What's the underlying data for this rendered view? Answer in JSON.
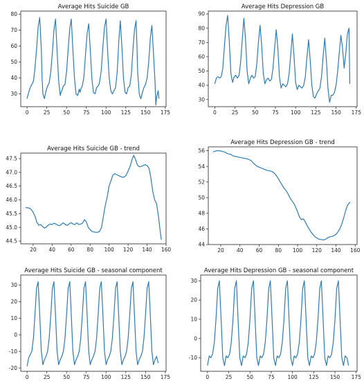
{
  "chart_data": [
    {
      "type": "line",
      "title": "Average Hits Suicide GB",
      "xlim": [
        -8,
        176
      ],
      "ylim": [
        22,
        82
      ],
      "xticks": [
        0,
        25,
        50,
        75,
        100,
        125,
        150,
        175
      ],
      "yticks": [
        30,
        40,
        50,
        60,
        70,
        80
      ],
      "series": [
        {
          "x": [
            0,
            2,
            4,
            6,
            8,
            10,
            12,
            14,
            16,
            18,
            19,
            20,
            22,
            24,
            26,
            28,
            30,
            32,
            34,
            36,
            38,
            40,
            42,
            43,
            44,
            46,
            48,
            50,
            52,
            54,
            56,
            58,
            60,
            62,
            64,
            66,
            67,
            68,
            70,
            72,
            74,
            76,
            78,
            80,
            82,
            84,
            86,
            88,
            90,
            91,
            92,
            94,
            96,
            98,
            100,
            102,
            104,
            106,
            108,
            110,
            112,
            114,
            115,
            116,
            118,
            120,
            122,
            124,
            126,
            128,
            130,
            132,
            134,
            136,
            138,
            139,
            140,
            142,
            144,
            146,
            148,
            150,
            152,
            154,
            156,
            158,
            160,
            162,
            163,
            164,
            166,
            167
          ],
          "y": [
            27,
            31,
            34,
            36,
            38,
            46,
            58,
            72,
            78,
            58,
            40,
            30,
            27,
            32,
            35,
            37,
            44,
            56,
            70,
            77,
            57,
            38,
            29,
            31,
            32,
            35,
            36,
            44,
            58,
            71,
            77,
            58,
            40,
            30,
            29,
            33,
            31,
            33,
            35,
            41,
            55,
            68,
            74,
            58,
            40,
            31,
            30,
            34,
            35,
            36,
            38,
            45,
            60,
            72,
            77,
            57,
            40,
            32,
            30,
            32,
            34,
            43,
            52,
            62,
            76,
            60,
            40,
            31,
            30,
            34,
            35,
            42,
            58,
            70,
            76,
            62,
            44,
            30,
            27,
            31,
            34,
            36,
            40,
            50,
            65,
            73,
            56,
            38,
            23,
            28,
            32,
            27
          ]
        }
      ]
    },
    {
      "type": "line",
      "title": "Average Hits Depression GB",
      "xlim": [
        -8,
        176
      ],
      "ylim": [
        25,
        92
      ],
      "xticks": [
        0,
        25,
        50,
        75,
        100,
        125,
        150,
        175
      ],
      "yticks": [
        30,
        40,
        50,
        60,
        70,
        80,
        90
      ],
      "series": [
        {
          "x": [
            0,
            2,
            4,
            6,
            8,
            10,
            12,
            14,
            16,
            18,
            20,
            22,
            24,
            26,
            28,
            30,
            32,
            34,
            36,
            38,
            40,
            42,
            44,
            46,
            48,
            50,
            52,
            54,
            56,
            58,
            60,
            62,
            64,
            66,
            68,
            70,
            72,
            74,
            76,
            78,
            80,
            82,
            84,
            86,
            88,
            90,
            92,
            94,
            96,
            98,
            100,
            102,
            104,
            106,
            108,
            110,
            112,
            114,
            116,
            118,
            120,
            122,
            124,
            126,
            128,
            130,
            132,
            134,
            136,
            138,
            140,
            142,
            144,
            146,
            148,
            150,
            152,
            154,
            156,
            158,
            160,
            162,
            164,
            166,
            167
          ],
          "y": [
            41,
            45,
            46,
            45,
            46,
            52,
            68,
            82,
            89,
            70,
            48,
            42,
            46,
            47,
            45,
            47,
            56,
            72,
            87,
            72,
            50,
            41,
            45,
            47,
            45,
            46,
            55,
            70,
            82,
            68,
            48,
            41,
            44,
            45,
            43,
            44,
            52,
            66,
            79,
            66,
            46,
            38,
            41,
            40,
            39,
            41,
            48,
            62,
            76,
            60,
            42,
            37,
            40,
            39,
            38,
            40,
            46,
            60,
            72,
            58,
            40,
            32,
            31,
            34,
            36,
            38,
            46,
            60,
            73,
            58,
            38,
            28,
            33,
            33,
            35,
            40,
            50,
            63,
            75,
            66,
            52,
            62,
            76,
            80,
            41
          ]
        }
      ]
    },
    {
      "type": "line",
      "title": "Average Hits Suicide GB - trend",
      "xlim": [
        7,
        160
      ],
      "ylim": [
        44.4,
        47.7
      ],
      "xticks": [
        20,
        40,
        60,
        80,
        100,
        120,
        140,
        160
      ],
      "yticks": [
        44.5,
        45.0,
        45.5,
        46.0,
        46.5,
        47.0,
        47.5
      ],
      "series": [
        {
          "x": [
            12,
            16,
            18,
            20,
            22,
            24,
            26,
            28,
            30,
            32,
            34,
            36,
            38,
            40,
            42,
            44,
            46,
            48,
            50,
            52,
            54,
            56,
            58,
            60,
            62,
            64,
            66,
            68,
            70,
            72,
            74,
            76,
            78,
            80,
            82,
            84,
            86,
            88,
            90,
            92,
            94,
            96,
            98,
            100,
            102,
            104,
            106,
            108,
            110,
            112,
            114,
            116,
            118,
            120,
            122,
            124,
            126,
            128,
            130,
            132,
            134,
            136,
            138,
            140,
            142,
            144,
            146,
            148,
            150,
            152,
            154,
            155
          ],
          "y": [
            45.72,
            45.7,
            45.65,
            45.55,
            45.4,
            45.18,
            45.08,
            45.1,
            45.03,
            44.97,
            45.02,
            45.08,
            45.12,
            45.1,
            45.15,
            45.12,
            45.08,
            45.06,
            45.12,
            45.16,
            45.1,
            45.07,
            45.13,
            45.17,
            45.12,
            45.1,
            45.16,
            45.1,
            45.12,
            45.15,
            45.28,
            45.2,
            45.0,
            44.92,
            44.85,
            44.83,
            44.82,
            44.82,
            44.85,
            45.0,
            45.4,
            45.8,
            46.1,
            46.5,
            46.7,
            46.9,
            46.95,
            46.92,
            46.88,
            46.85,
            46.82,
            46.83,
            46.9,
            47.05,
            47.2,
            47.45,
            47.62,
            47.45,
            47.25,
            47.2,
            47.22,
            47.25,
            47.28,
            47.25,
            47.15,
            46.8,
            46.3,
            46.0,
            45.85,
            45.4,
            44.8,
            44.55
          ]
        }
      ]
    },
    {
      "type": "line",
      "title": "Average Hits Depression GB - trend",
      "xlim": [
        7,
        162
      ],
      "ylim": [
        44,
        56.5
      ],
      "xticks": [
        20,
        40,
        60,
        80,
        100,
        120,
        140,
        160
      ],
      "yticks": [
        44,
        46,
        48,
        50,
        52,
        54,
        56
      ],
      "series": [
        {
          "x": [
            12,
            14,
            16,
            18,
            20,
            22,
            24,
            26,
            28,
            30,
            32,
            34,
            36,
            38,
            40,
            42,
            44,
            46,
            48,
            50,
            52,
            54,
            56,
            58,
            60,
            62,
            64,
            66,
            68,
            70,
            72,
            74,
            76,
            78,
            80,
            82,
            84,
            86,
            88,
            90,
            92,
            94,
            96,
            98,
            100,
            102,
            104,
            106,
            108,
            110,
            112,
            114,
            116,
            118,
            120,
            122,
            124,
            126,
            128,
            130,
            132,
            134,
            136,
            138,
            140,
            142,
            144,
            146,
            148,
            150,
            152,
            154,
            155
          ],
          "y": [
            55.85,
            55.95,
            56.0,
            56.0,
            55.98,
            55.9,
            55.85,
            55.7,
            55.6,
            55.55,
            55.4,
            55.3,
            55.25,
            55.2,
            55.15,
            55.1,
            55.05,
            55.0,
            54.95,
            54.85,
            54.7,
            54.4,
            54.2,
            54.0,
            53.9,
            53.8,
            53.7,
            53.6,
            53.5,
            53.45,
            53.4,
            53.3,
            53.1,
            52.8,
            52.4,
            52.0,
            51.6,
            51.2,
            50.9,
            50.5,
            50.0,
            49.6,
            49.3,
            48.8,
            48.2,
            47.5,
            47.2,
            47.3,
            46.9,
            46.4,
            46.0,
            45.6,
            45.3,
            45.0,
            44.85,
            44.7,
            44.65,
            44.6,
            44.6,
            44.75,
            44.9,
            45.0,
            45.05,
            45.15,
            45.3,
            45.6,
            46.0,
            46.6,
            47.4,
            48.3,
            49.0,
            49.35,
            49.4
          ]
        }
      ]
    },
    {
      "type": "line",
      "title": "Average Hits Suicide GB - seasonal component",
      "xlim": [
        -8,
        176
      ],
      "ylim": [
        -22,
        36
      ],
      "xticks": [
        0,
        25,
        50,
        75,
        100,
        125,
        150,
        175
      ],
      "yticks": [
        -20,
        -10,
        0,
        10,
        20,
        30
      ],
      "series": [
        {
          "x": [
            0,
            2,
            4,
            6,
            8,
            10,
            12,
            14,
            16,
            18,
            20,
            22,
            24,
            26,
            28,
            30,
            32,
            34,
            36,
            38,
            40,
            42,
            44,
            46,
            48,
            50,
            52,
            54,
            56,
            58,
            60,
            62,
            64,
            66,
            68,
            70,
            72,
            74,
            76,
            78,
            80,
            82,
            84,
            86,
            88,
            90,
            92,
            94,
            96,
            98,
            100,
            102,
            104,
            106,
            108,
            110,
            112,
            114,
            116,
            118,
            120,
            122,
            124,
            126,
            128,
            130,
            132,
            134,
            136,
            138,
            140,
            142,
            144,
            146,
            148,
            150,
            152,
            154,
            156,
            158,
            160,
            162,
            164,
            166
          ],
          "y": [
            -19,
            -14,
            -12,
            -10,
            -2,
            12,
            28,
            32,
            12,
            -10,
            -18,
            -15,
            -13,
            -10,
            -2,
            12,
            28,
            32,
            12,
            -10,
            -18,
            -15,
            -13,
            -10,
            -2,
            12,
            28,
            32,
            12,
            -10,
            -18,
            -15,
            -13,
            -10,
            -2,
            12,
            28,
            32,
            12,
            -10,
            -18,
            -15,
            -13,
            -10,
            -2,
            12,
            28,
            32,
            12,
            -10,
            -18,
            -15,
            -13,
            -10,
            -2,
            12,
            28,
            32,
            12,
            -10,
            -18,
            -15,
            -13,
            -10,
            -2,
            12,
            28,
            32,
            12,
            -10,
            -18,
            -15,
            -13,
            -10,
            -2,
            12,
            28,
            32,
            12,
            -10,
            -18,
            -15,
            -13,
            -17
          ]
        }
      ]
    },
    {
      "type": "line",
      "title": "Average Hits Depression GB - seasonal component",
      "xlim": [
        -8,
        176
      ],
      "ylim": [
        -17,
        33
      ],
      "xticks": [
        0,
        25,
        50,
        75,
        100,
        125,
        150,
        175
      ],
      "yticks": [
        -10,
        0,
        10,
        20,
        30
      ],
      "series": [
        {
          "x": [
            0,
            2,
            4,
            6,
            8,
            10,
            12,
            14,
            16,
            18,
            20,
            22,
            24,
            26,
            28,
            30,
            32,
            34,
            36,
            38,
            40,
            42,
            44,
            46,
            48,
            50,
            52,
            54,
            56,
            58,
            60,
            62,
            64,
            66,
            68,
            70,
            72,
            74,
            76,
            78,
            80,
            82,
            84,
            86,
            88,
            90,
            92,
            94,
            96,
            98,
            100,
            102,
            104,
            106,
            108,
            110,
            112,
            114,
            116,
            118,
            120,
            122,
            124,
            126,
            128,
            130,
            132,
            134,
            136,
            138,
            140,
            142,
            144,
            146,
            148,
            150,
            152,
            154,
            156,
            158,
            160,
            162,
            164,
            166
          ],
          "y": [
            -14,
            -9,
            -10,
            -8,
            -2,
            10,
            26,
            30,
            10,
            -10,
            -14,
            -9,
            -10,
            -8,
            -2,
            10,
            26,
            30,
            10,
            -10,
            -14,
            -9,
            -10,
            -8,
            -2,
            10,
            26,
            30,
            10,
            -10,
            -14,
            -9,
            -10,
            -8,
            -2,
            10,
            26,
            30,
            10,
            -10,
            -14,
            -9,
            -10,
            -8,
            -2,
            10,
            26,
            30,
            10,
            -10,
            -14,
            -9,
            -10,
            -8,
            -2,
            10,
            26,
            30,
            10,
            -10,
            -14,
            -9,
            -10,
            -8,
            -2,
            10,
            26,
            30,
            10,
            -10,
            -14,
            -9,
            -10,
            -8,
            -2,
            10,
            26,
            30,
            10,
            -10,
            -14,
            -9,
            -10,
            -14
          ]
        }
      ]
    }
  ]
}
